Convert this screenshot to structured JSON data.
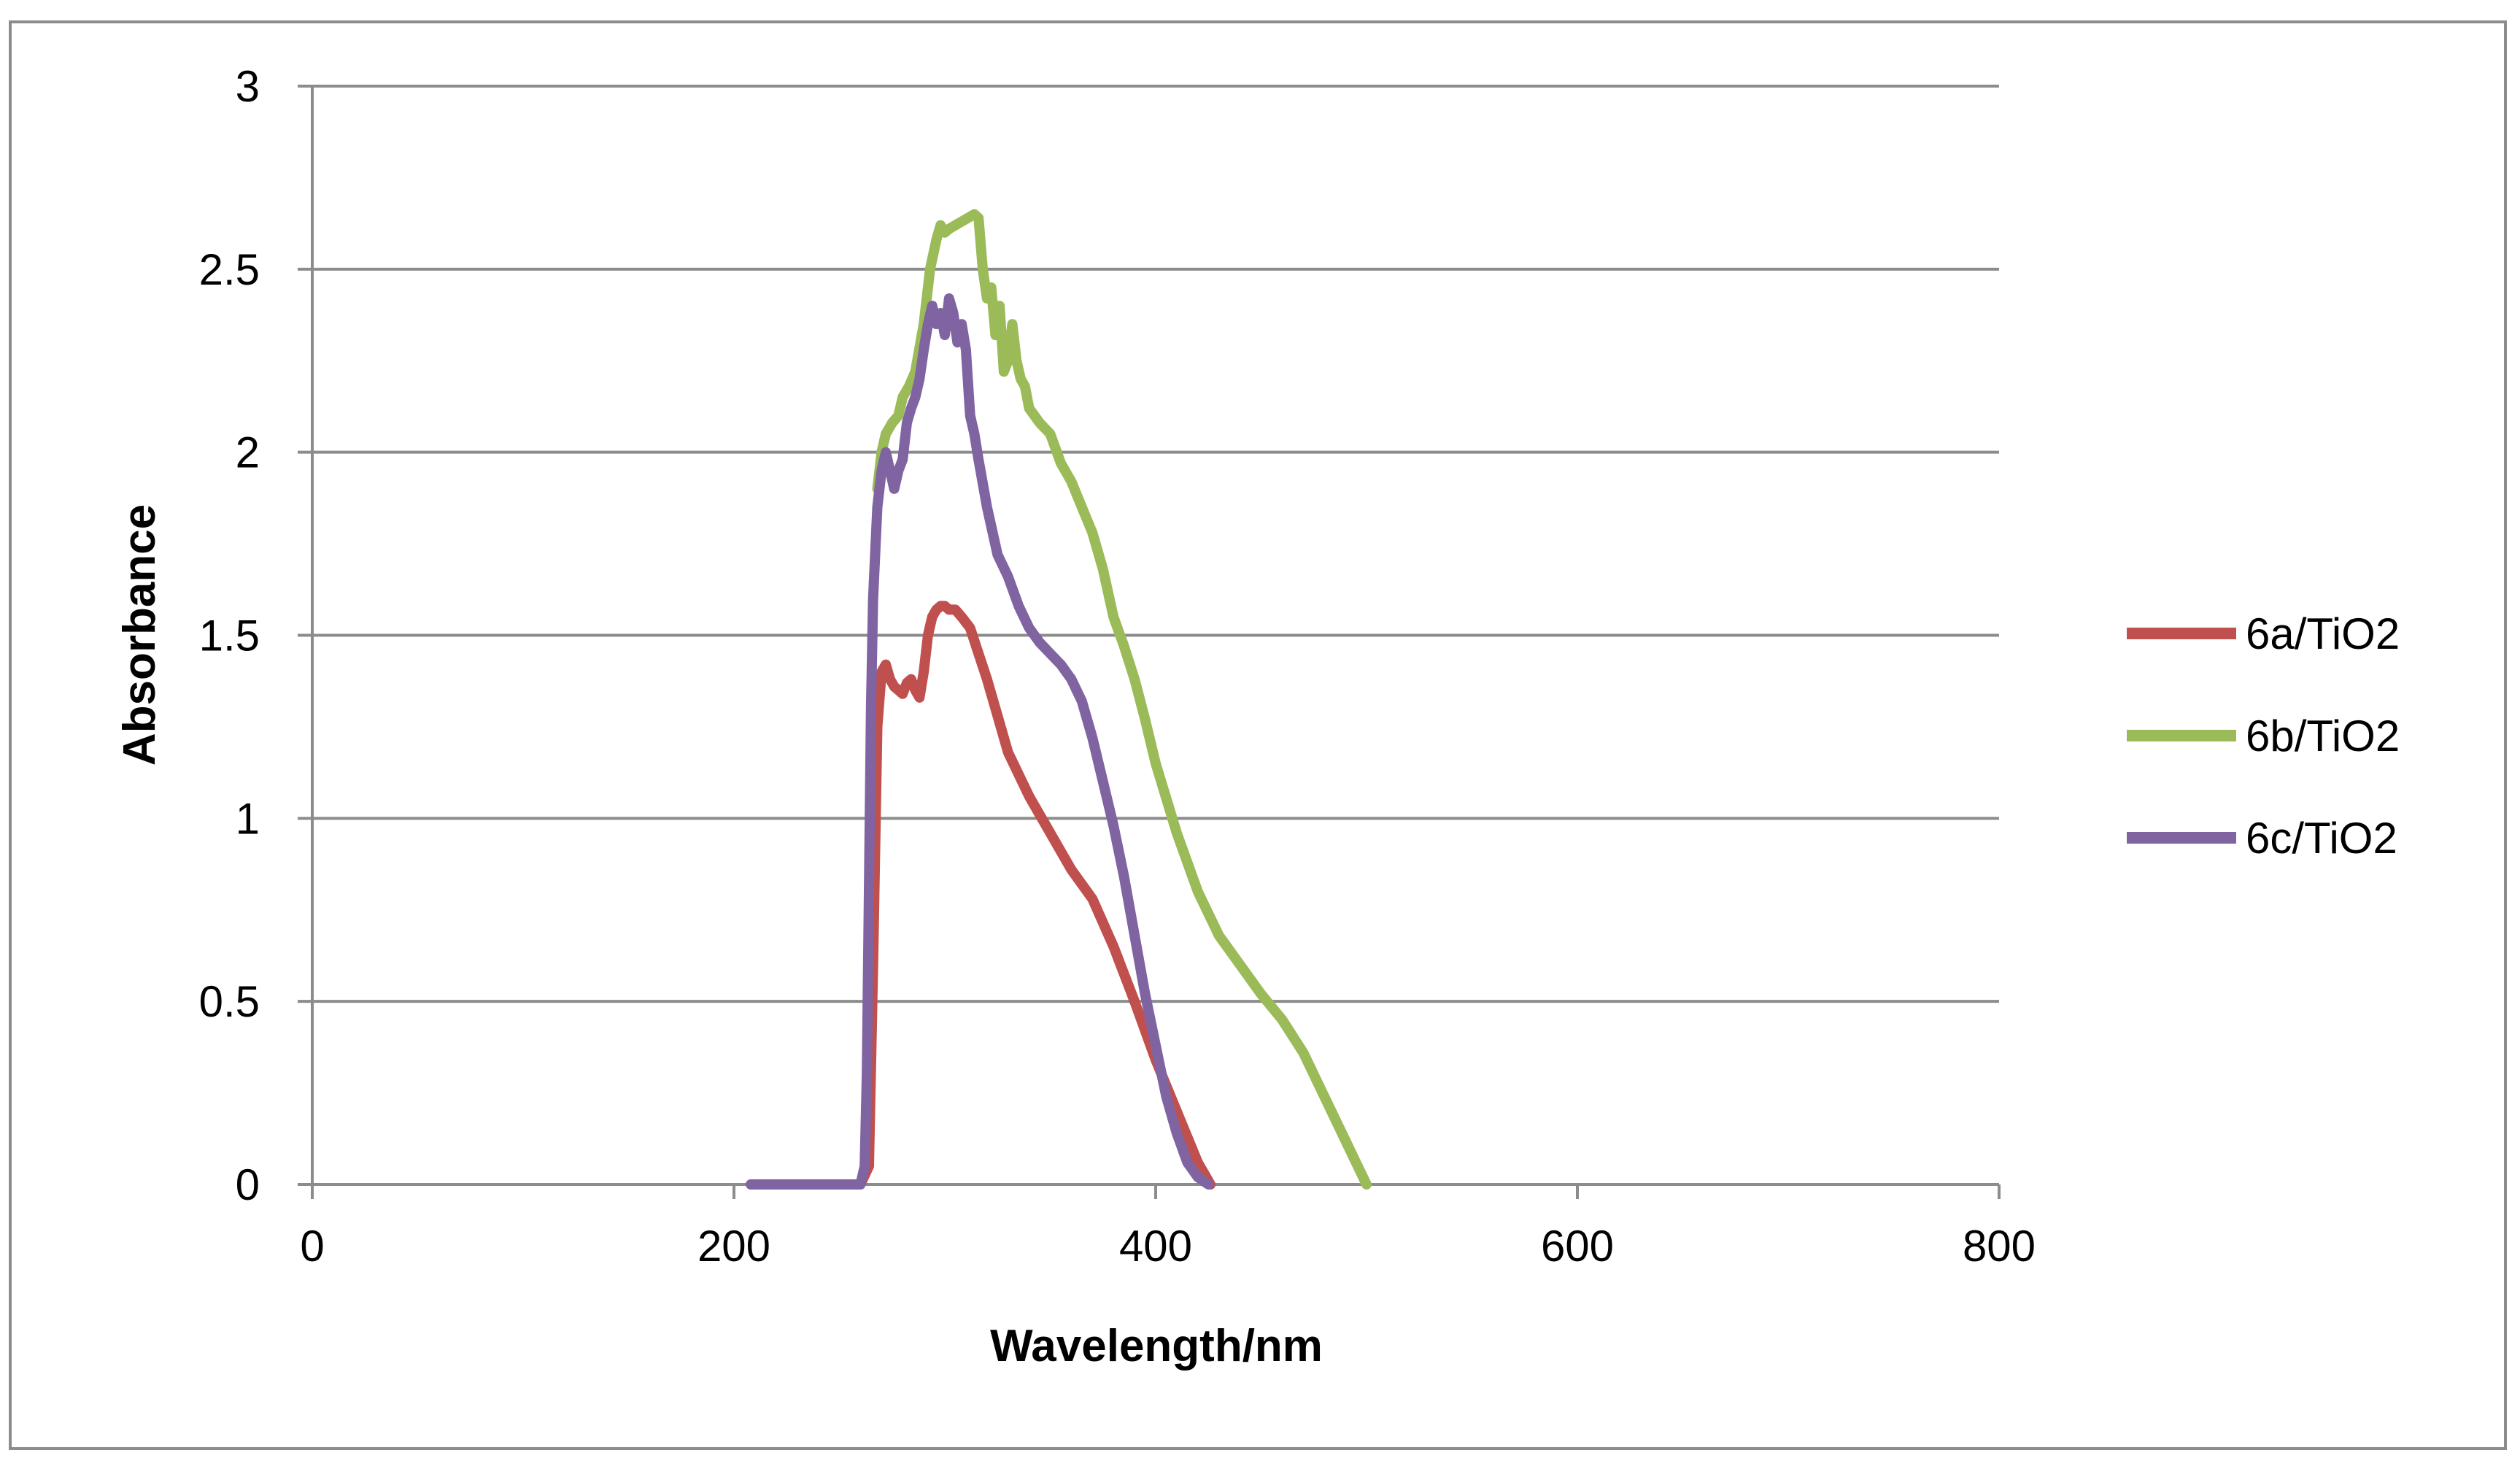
{
  "chart_data": {
    "type": "line",
    "title": "",
    "xlabel": "Wavelength/nm",
    "ylabel": "Absorbance",
    "xlim": [
      0,
      800
    ],
    "ylim": [
      0,
      3
    ],
    "xticks": [
      0,
      200,
      400,
      600,
      800
    ],
    "yticks": [
      0,
      0.5,
      1,
      1.5,
      2,
      2.5,
      3
    ],
    "xtick_labels": [
      "0",
      "200",
      "400",
      "600",
      "800"
    ],
    "ytick_labels": [
      "0",
      "0.5",
      "1",
      "1.5",
      "2",
      "2.5",
      "3"
    ],
    "grid": "horizontal",
    "legend_position": "right",
    "series": [
      {
        "name": "6a/TiO2",
        "color": "#c0504d",
        "x": [
          208,
          220,
          240,
          260,
          264,
          266,
          268,
          270,
          272,
          274,
          276,
          278,
          280,
          282,
          284,
          286,
          288,
          290,
          292,
          294,
          296,
          298,
          300,
          302,
          305,
          308,
          312,
          316,
          320,
          325,
          330,
          340,
          350,
          360,
          370,
          380,
          390,
          400,
          410,
          420,
          426
        ],
        "y": [
          0,
          0,
          0,
          0,
          0.05,
          0.6,
          1.25,
          1.4,
          1.42,
          1.38,
          1.36,
          1.35,
          1.34,
          1.37,
          1.38,
          1.35,
          1.33,
          1.4,
          1.5,
          1.55,
          1.57,
          1.58,
          1.58,
          1.57,
          1.57,
          1.55,
          1.52,
          1.45,
          1.38,
          1.28,
          1.18,
          1.06,
          0.96,
          0.86,
          0.78,
          0.65,
          0.5,
          0.34,
          0.2,
          0.06,
          0
        ]
      },
      {
        "name": "6b/TiO2",
        "color": "#9bbb59",
        "x": [
          268,
          270,
          272,
          275,
          278,
          280,
          283,
          286,
          290,
          293,
          296,
          298,
          300,
          302,
          305,
          308,
          311,
          314,
          316,
          318,
          320,
          322,
          324,
          326,
          328,
          330,
          332,
          334,
          336,
          338,
          340,
          345,
          350,
          355,
          360,
          365,
          370,
          375,
          380,
          385,
          390,
          395,
          400,
          410,
          420,
          430,
          440,
          450,
          460,
          470,
          480,
          490,
          500
        ],
        "y": [
          1.9,
          2.0,
          2.05,
          2.08,
          2.1,
          2.15,
          2.18,
          2.22,
          2.35,
          2.5,
          2.58,
          2.62,
          2.6,
          2.61,
          2.62,
          2.63,
          2.64,
          2.65,
          2.64,
          2.5,
          2.42,
          2.45,
          2.32,
          2.4,
          2.22,
          2.25,
          2.35,
          2.25,
          2.2,
          2.18,
          2.12,
          2.08,
          2.05,
          1.97,
          1.92,
          1.85,
          1.78,
          1.68,
          1.55,
          1.47,
          1.38,
          1.27,
          1.15,
          0.96,
          0.8,
          0.68,
          0.6,
          0.52,
          0.45,
          0.36,
          0.24,
          0.12,
          0
        ]
      },
      {
        "name": "6c/TiO2",
        "color": "#8064a2",
        "x": [
          208,
          220,
          240,
          260,
          262,
          263,
          264,
          265,
          266,
          268,
          270,
          272,
          274,
          276,
          278,
          280,
          282,
          284,
          286,
          288,
          290,
          292,
          294,
          296,
          298,
          300,
          302,
          304,
          306,
          308,
          310,
          312,
          314,
          316,
          320,
          325,
          330,
          335,
          340,
          345,
          350,
          355,
          360,
          365,
          370,
          375,
          380,
          385,
          390,
          395,
          400,
          405,
          410,
          415,
          420,
          425
        ],
        "y": [
          0,
          0,
          0,
          0,
          0.05,
          0.3,
          0.8,
          1.3,
          1.6,
          1.85,
          1.95,
          2.0,
          1.95,
          1.9,
          1.95,
          1.98,
          2.08,
          2.12,
          2.15,
          2.2,
          2.28,
          2.35,
          2.4,
          2.35,
          2.38,
          2.32,
          2.42,
          2.38,
          2.3,
          2.35,
          2.28,
          2.1,
          2.05,
          1.98,
          1.85,
          1.72,
          1.66,
          1.58,
          1.52,
          1.48,
          1.45,
          1.42,
          1.38,
          1.32,
          1.22,
          1.1,
          0.98,
          0.84,
          0.68,
          0.52,
          0.38,
          0.24,
          0.14,
          0.06,
          0.02,
          0
        ]
      }
    ]
  }
}
